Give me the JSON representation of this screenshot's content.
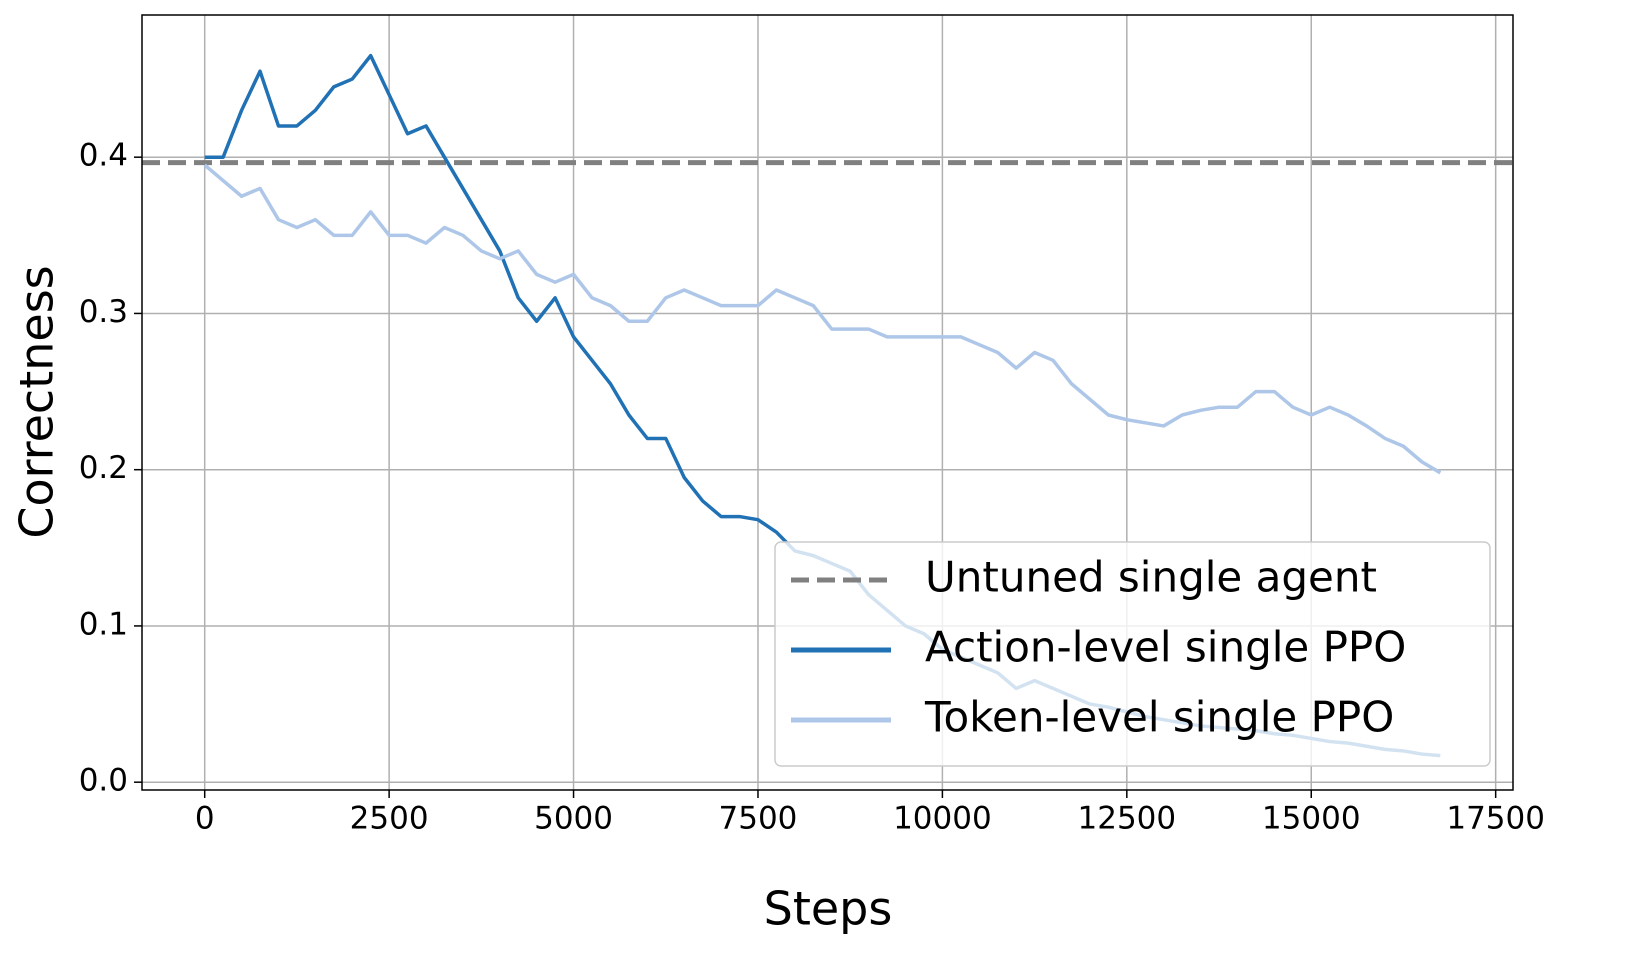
{
  "chart_data": {
    "type": "line",
    "xlabel": "Steps",
    "ylabel": "Correctness",
    "xlim": [
      -850,
      17735
    ],
    "ylim": [
      -0.005,
      0.491
    ],
    "xticks": [
      0,
      2500,
      5000,
      7500,
      10000,
      12500,
      15000,
      17500
    ],
    "yticks": [
      {
        "value": 0,
        "label": "0.0"
      },
      0.1,
      0.2,
      0.3,
      0.4
    ],
    "grid": true,
    "legend": "lower right",
    "reference_line": {
      "name": "Untuned single agent",
      "value": 0.3965,
      "color": "#808080"
    },
    "x": [
      0,
      250,
      500,
      750,
      1000,
      1250,
      1500,
      1750,
      2000,
      2250,
      2500,
      2750,
      3000,
      3250,
      3500,
      3750,
      4000,
      4250,
      4500,
      4750,
      5000,
      5250,
      5500,
      5750,
      6000,
      6250,
      6500,
      6750,
      7000,
      7250,
      7500,
      7750,
      8000,
      8250,
      8500,
      8750,
      9000,
      9250,
      9500,
      9750,
      10000,
      10250,
      10500,
      10750,
      11000,
      11250,
      11500,
      11750,
      12000,
      12250,
      12500,
      12750,
      13000,
      13250,
      13500,
      13750,
      14000,
      14250,
      14500,
      14750,
      15000,
      15250,
      15500,
      15750,
      16000,
      16250,
      16500,
      16750
    ],
    "series": [
      {
        "name": "Action-level single PPO",
        "color": "#2171b5",
        "values": [
          0.4,
          0.4,
          0.43,
          0.455,
          0.42,
          0.42,
          0.43,
          0.445,
          0.45,
          0.465,
          0.44,
          0.415,
          0.42,
          0.4,
          0.38,
          0.36,
          0.34,
          0.31,
          0.295,
          0.31,
          0.285,
          0.27,
          0.255,
          0.235,
          0.22,
          0.22,
          0.195,
          0.18,
          0.17,
          0.17,
          0.168,
          0.16,
          0.148,
          0.145,
          0.14,
          0.135,
          0.12,
          0.11,
          0.1,
          0.095,
          0.085,
          0.08,
          0.075,
          0.07,
          0.06,
          0.065,
          0.06,
          0.055,
          0.05,
          0.048,
          0.045,
          0.042,
          0.04,
          0.038,
          0.036,
          0.035,
          0.034,
          0.033,
          0.031,
          0.03,
          0.028,
          0.026,
          0.025,
          0.023,
          0.021,
          0.02,
          0.018,
          0.017
        ]
      },
      {
        "name": "Token-level single PPO",
        "color": "#aec7e8",
        "values": [
          0.395,
          0.385,
          0.375,
          0.38,
          0.36,
          0.355,
          0.36,
          0.35,
          0.35,
          0.365,
          0.35,
          0.35,
          0.345,
          0.355,
          0.35,
          0.34,
          0.335,
          0.34,
          0.325,
          0.32,
          0.325,
          0.31,
          0.305,
          0.295,
          0.295,
          0.31,
          0.315,
          0.31,
          0.305,
          0.305,
          0.305,
          0.315,
          0.31,
          0.305,
          0.29,
          0.29,
          0.29,
          0.285,
          0.285,
          0.285,
          0.285,
          0.285,
          0.28,
          0.275,
          0.265,
          0.275,
          0.27,
          0.255,
          0.245,
          0.235,
          0.232,
          0.23,
          0.228,
          0.235,
          0.238,
          0.24,
          0.24,
          0.25,
          0.25,
          0.24,
          0.235,
          0.24,
          0.235,
          0.228,
          0.22,
          0.215,
          0.205,
          0.198
        ]
      }
    ]
  }
}
